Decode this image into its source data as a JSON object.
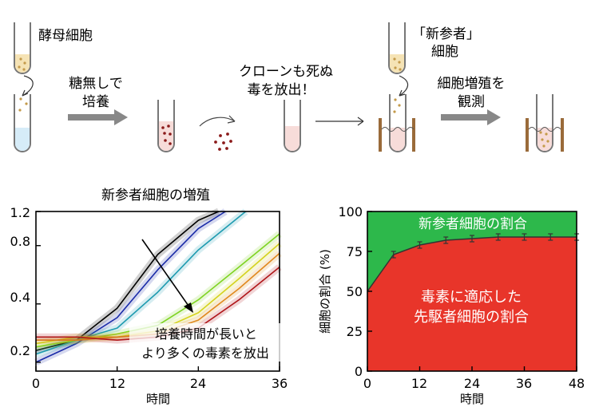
{
  "workflow": {
    "yeast_label": "酵母細胞",
    "step1_label_line1": "糖無しで",
    "step1_label_line2": "培養",
    "step2_label_line1": "クローンも死ぬ",
    "step2_label_line2": "毒を放出！",
    "newcomer_label_line1": "「新参者」",
    "newcomer_label_line2": "細胞",
    "step3_label_line1": "細胞増殖を",
    "step3_label_line2": "観測"
  },
  "chart_data": [
    {
      "type": "line",
      "title": "新参者細胞の増殖",
      "xlabel": "時間",
      "ylabel": "",
      "xlim": [
        0,
        36
      ],
      "ylim": [
        0.18,
        1.2
      ],
      "x_ticks": [
        "0",
        "12",
        "24",
        "36"
      ],
      "y_ticks": [
        "0.2",
        "0.4",
        "0.8",
        "1.2"
      ],
      "annotation_line1": "培養時間が長いと",
      "annotation_line2": "より多くの毒素を放出",
      "series": [
        {
          "color": "#000000",
          "x": [
            0,
            6,
            12,
            18,
            24,
            27
          ],
          "y": [
            0.23,
            0.26,
            0.38,
            0.72,
            1.08,
            1.2
          ]
        },
        {
          "color": "#1a2ba8",
          "x": [
            0,
            6,
            12,
            18,
            24,
            28
          ],
          "y": [
            0.2,
            0.25,
            0.34,
            0.6,
            0.98,
            1.2
          ]
        },
        {
          "color": "#1e9bb0",
          "x": [
            0,
            6,
            12,
            18,
            24,
            31
          ],
          "y": [
            0.22,
            0.26,
            0.3,
            0.46,
            0.76,
            1.2
          ]
        },
        {
          "color": "#7ed321",
          "x": [
            0,
            6,
            12,
            18,
            24,
            30,
            36
          ],
          "y": [
            0.24,
            0.26,
            0.28,
            0.31,
            0.42,
            0.62,
            0.92
          ]
        },
        {
          "color": "#d4d21e",
          "x": [
            0,
            6,
            12,
            18,
            24,
            30,
            36
          ],
          "y": [
            0.25,
            0.27,
            0.27,
            0.29,
            0.36,
            0.54,
            0.82
          ]
        },
        {
          "color": "#e08a1e",
          "x": [
            0,
            6,
            12,
            18,
            24,
            30,
            36
          ],
          "y": [
            0.26,
            0.26,
            0.27,
            0.28,
            0.33,
            0.48,
            0.73
          ]
        },
        {
          "color": "#b0161a",
          "x": [
            0,
            6,
            12,
            18,
            24,
            30,
            36
          ],
          "y": [
            0.27,
            0.27,
            0.26,
            0.27,
            0.3,
            0.42,
            0.62
          ]
        }
      ]
    },
    {
      "type": "area",
      "xlabel": "時間",
      "ylabel": "細胞の割合 (%)",
      "xlim": [
        0,
        48
      ],
      "ylim": [
        0,
        100
      ],
      "x_ticks": [
        "0",
        "12",
        "24",
        "36",
        "48"
      ],
      "y_ticks": [
        "0",
        "25",
        "50",
        "75",
        "100"
      ],
      "x": [
        0,
        6,
        12,
        18,
        24,
        30,
        36,
        42,
        48
      ],
      "series": [
        {
          "name": "毒素に適応した先駆者細胞の割合",
          "color": "#e8352a",
          "values": [
            50,
            73,
            79,
            82,
            83,
            84,
            84,
            84,
            84
          ]
        },
        {
          "name": "新参者細胞の割合",
          "color": "#2db84b",
          "values": [
            50,
            27,
            21,
            18,
            17,
            16,
            16,
            16,
            16
          ]
        }
      ],
      "label_top": "新参者細胞の割合",
      "label_bottom_line1": "毒素に適応した",
      "label_bottom_line2": "先駆者細胞の割合"
    }
  ]
}
